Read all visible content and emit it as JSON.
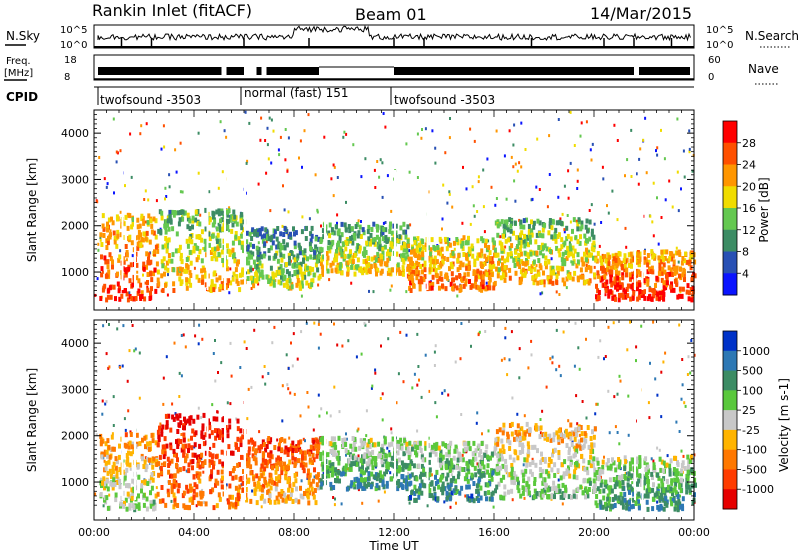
{
  "header": {
    "radar": "Rankin Inlet (fitACF)",
    "beam": "Beam 01",
    "date": "14/Mar/2015"
  },
  "param_panel": {
    "left_labels": [
      "N.Sky",
      "Freq.",
      "[MHz]"
    ],
    "right_labels": [
      "N.Search",
      "Nave"
    ],
    "nsky_ticks": [
      "10^5",
      "10^0"
    ],
    "nsearch_ticks": [
      "10^5",
      "10^0"
    ],
    "freq_ticks": [
      "18",
      "8"
    ],
    "nave_ticks": [
      "60",
      "0"
    ],
    "cpid_label": "CPID",
    "cpid_segments": [
      {
        "name": "twofsound -3503",
        "start_hour": 0.0
      },
      {
        "name": "normal (fast) 151",
        "start_hour": 6.0
      },
      {
        "name": "twofsound -3503",
        "start_hour": 12.0
      }
    ]
  },
  "axes": {
    "xlabel": "Time UT",
    "xticks": [
      "00:00",
      "04:00",
      "08:00",
      "12:00",
      "16:00",
      "20:00",
      "00:00"
    ],
    "ylabel": "Slant Range [km]",
    "yticks": [
      "1000",
      "2000",
      "3000",
      "4000"
    ]
  },
  "chart_data": [
    {
      "type": "heatmap",
      "title": "",
      "xlabel": "Time UT",
      "ylabel": "Slant Range [km]",
      "xlim": [
        0,
        24
      ],
      "ylim": [
        180,
        4500
      ],
      "yticks": [
        1000,
        2000,
        3000,
        4000
      ],
      "colorbar": {
        "label": "Power [dB]",
        "ticks": [
          "28",
          "24",
          "20",
          "16",
          "12",
          "8",
          "4"
        ],
        "colors": [
          "#ff0000",
          "#ff5000",
          "#ff9600",
          "#f0dc00",
          "#64c850",
          "#3c8c64",
          "#2850b4",
          "#0a14ff"
        ]
      },
      "regions": [
        {
          "t0": 0.2,
          "t1": 2.5,
          "r0": 450,
          "r1": 2300,
          "level": 0.85
        },
        {
          "t0": 2.5,
          "t1": 6.0,
          "r0": 650,
          "r1": 2400,
          "level": 0.6
        },
        {
          "t0": 6.0,
          "t1": 9.0,
          "r0": 700,
          "r1": 2000,
          "level": 0.45
        },
        {
          "t0": 9.0,
          "t1": 12.5,
          "r0": 1000,
          "r1": 2100,
          "level": 0.55
        },
        {
          "t0": 12.5,
          "t1": 16.0,
          "r0": 650,
          "r1": 1800,
          "level": 0.75
        },
        {
          "t0": 16.0,
          "t1": 20.0,
          "r0": 800,
          "r1": 2200,
          "level": 0.6
        },
        {
          "t0": 20.0,
          "t1": 24.0,
          "r0": 450,
          "r1": 1500,
          "level": 0.9
        }
      ]
    },
    {
      "type": "heatmap",
      "title": "",
      "xlabel": "Time UT",
      "ylabel": "Slant Range [km]",
      "xlim": [
        0,
        24
      ],
      "ylim": [
        180,
        4500
      ],
      "yticks": [
        1000,
        2000,
        3000,
        4000
      ],
      "colorbar": {
        "label": "Velocity [m s-1]",
        "ticks": [
          "1000",
          "500",
          "100",
          "25",
          "-25",
          "-100",
          "-500",
          "-1000"
        ],
        "colors": [
          "#0032c8",
          "#2d78b4",
          "#3c8c64",
          "#5ac83c",
          "#c8c8c8",
          "#ffb400",
          "#ff7800",
          "#ff3c00",
          "#e60000"
        ]
      },
      "regions": [
        {
          "t0": 0.2,
          "t1": 2.5,
          "r0": 450,
          "r1": 2100,
          "level": 0.5
        },
        {
          "t0": 2.5,
          "t1": 6.0,
          "r0": 500,
          "r1": 2500,
          "level": 0.2
        },
        {
          "t0": 6.0,
          "t1": 9.0,
          "r0": 600,
          "r1": 2000,
          "level": 0.3
        },
        {
          "t0": 9.0,
          "t1": 12.5,
          "r0": 900,
          "r1": 2000,
          "level": 0.72
        },
        {
          "t0": 12.5,
          "t1": 16.0,
          "r0": 650,
          "r1": 1900,
          "level": 0.75
        },
        {
          "t0": 16.0,
          "t1": 20.0,
          "r0": 700,
          "r1": 2300,
          "level": 0.55
        },
        {
          "t0": 20.0,
          "t1": 24.0,
          "r0": 450,
          "r1": 1600,
          "level": 0.72
        }
      ]
    }
  ]
}
